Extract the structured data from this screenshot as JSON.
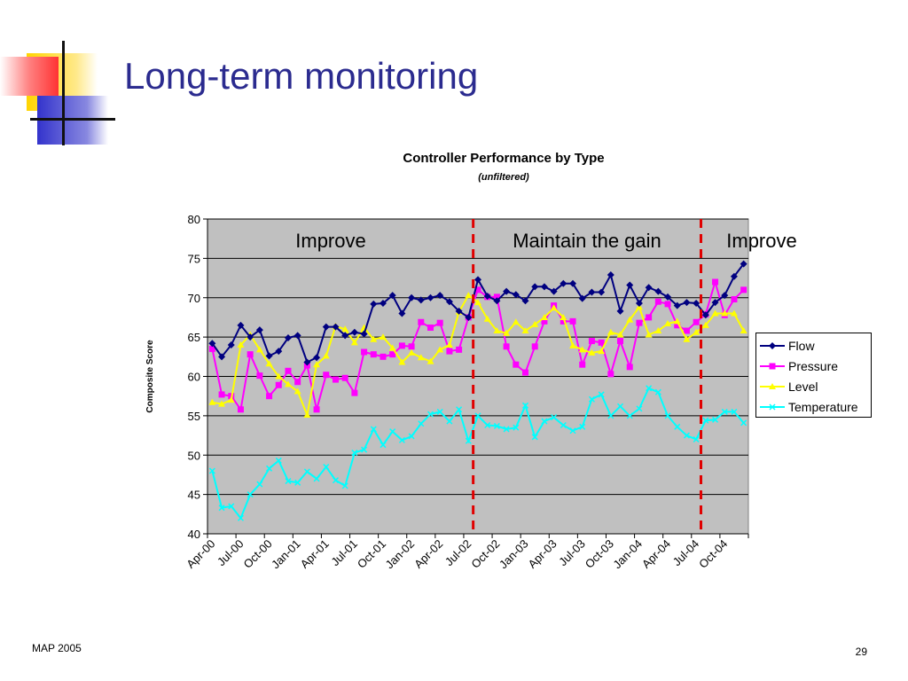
{
  "slide": {
    "title": "Long-term monitoring",
    "footer_left": "MAP 2005",
    "page_number": "29"
  },
  "colors": {
    "title": "#2B2B8F",
    "plot_background": "#C0C0C0",
    "divider": "#E00000",
    "decor_red": "#FF3333",
    "decor_yellow": "#FFD400",
    "decor_blue": "#3333CC"
  },
  "chart_data": {
    "type": "line",
    "title": "Controller Performance by Type",
    "subtitle": "(unfiltered)",
    "xlabel": "",
    "ylabel": "Composite Score",
    "ylim": [
      40,
      80
    ],
    "yticks": [
      40,
      45,
      50,
      55,
      60,
      65,
      70,
      75,
      80
    ],
    "grid": true,
    "legend_position": "right",
    "x": [
      "Apr-00",
      "May-00",
      "Jun-00",
      "Jul-00",
      "Aug-00",
      "Sep-00",
      "Oct-00",
      "Nov-00",
      "Dec-00",
      "Jan-01",
      "Feb-01",
      "Mar-01",
      "Apr-01",
      "May-01",
      "Jun-01",
      "Jul-01",
      "Aug-01",
      "Sep-01",
      "Oct-01",
      "Nov-01",
      "Dec-01",
      "Jan-02",
      "Feb-02",
      "Mar-02",
      "Apr-02",
      "May-02",
      "Jun-02",
      "Jul-02",
      "Aug-02",
      "Sep-02",
      "Oct-02",
      "Nov-02",
      "Dec-02",
      "Jan-03",
      "Feb-03",
      "Mar-03",
      "Apr-03",
      "May-03",
      "Jun-03",
      "Jul-03",
      "Aug-03",
      "Sep-03",
      "Oct-03",
      "Nov-03",
      "Dec-03",
      "Jan-04",
      "Feb-04",
      "Mar-04",
      "Apr-04",
      "May-04",
      "Jun-04",
      "Jul-04",
      "Aug-04",
      "Sep-04",
      "Oct-04",
      "Nov-04",
      "Dec-04"
    ],
    "xtick_labels": [
      "Apr-00",
      "Jul-00",
      "Oct-00",
      "Jan-01",
      "Apr-01",
      "Jul-01",
      "Oct-01",
      "Jan-02",
      "Apr-02",
      "Jul-02",
      "Oct-02",
      "Jan-03",
      "Apr-03",
      "Jul-03",
      "Oct-03",
      "Jan-04",
      "Apr-04",
      "Jul-04",
      "Oct-04"
    ],
    "series": [
      {
        "name": "Flow",
        "color": "#000080",
        "marker": "diamond",
        "values": [
          64.2,
          62.5,
          64.0,
          66.5,
          65.0,
          65.9,
          62.6,
          63.2,
          64.9,
          65.2,
          61.8,
          62.4,
          66.3,
          66.3,
          65.2,
          65.6,
          65.4,
          69.2,
          69.3,
          70.3,
          68.0,
          70.0,
          69.7,
          70.0,
          70.3,
          69.5,
          68.3,
          67.5,
          72.3,
          70.2,
          69.6,
          70.8,
          70.4,
          69.6,
          71.4,
          71.4,
          70.8,
          71.8,
          71.8,
          69.9,
          70.7,
          70.7,
          72.9,
          68.3,
          71.6,
          69.3,
          71.3,
          70.8,
          70.1,
          69.0,
          69.4,
          69.3,
          67.8,
          69.4,
          70.3,
          72.7,
          74.3
        ]
      },
      {
        "name": "Pressure",
        "color": "#FF00FF",
        "marker": "square",
        "values": [
          63.5,
          57.7,
          57.5,
          55.8,
          62.8,
          60.1,
          57.5,
          58.9,
          60.7,
          59.3,
          61.4,
          55.8,
          60.2,
          59.6,
          59.8,
          57.9,
          63.1,
          62.8,
          62.5,
          62.8,
          63.9,
          63.8,
          66.9,
          66.2,
          66.8,
          63.2,
          63.4,
          67.5,
          71.0,
          70.1,
          70.1,
          63.8,
          61.5,
          60.5,
          63.8,
          67.0,
          69.0,
          67.0,
          67.0,
          61.5,
          64.5,
          64.3,
          60.3,
          64.5,
          61.2,
          66.8,
          67.5,
          69.5,
          69.2,
          66.5,
          65.8,
          66.9,
          67.9,
          72.0,
          67.8,
          69.8,
          71.0
        ]
      },
      {
        "name": "Level",
        "color": "#FFFF00",
        "marker": "triangle",
        "values": [
          56.7,
          56.5,
          57.0,
          64.0,
          65.3,
          63.4,
          61.6,
          60.0,
          59.0,
          58.1,
          55.1,
          61.5,
          62.6,
          66.4,
          66.0,
          64.3,
          66.2,
          64.7,
          65.0,
          63.6,
          61.8,
          63.0,
          62.4,
          61.9,
          63.4,
          64.0,
          68.2,
          70.3,
          69.4,
          67.3,
          65.8,
          65.5,
          66.9,
          65.8,
          66.6,
          67.5,
          68.7,
          67.5,
          63.9,
          63.4,
          63.0,
          63.2,
          65.6,
          65.3,
          67.2,
          68.8,
          65.3,
          65.8,
          66.7,
          67.0,
          64.7,
          65.6,
          66.5,
          68.0,
          68.0,
          68.0,
          65.8
        ]
      },
      {
        "name": "Temperature",
        "color": "#00FFFF",
        "marker": "x",
        "values": [
          48.0,
          43.3,
          43.5,
          42.0,
          45.0,
          46.3,
          48.3,
          49.3,
          46.7,
          46.5,
          47.9,
          47.0,
          48.5,
          46.8,
          46.1,
          50.3,
          50.7,
          53.3,
          51.3,
          53.0,
          51.9,
          52.4,
          54.0,
          55.2,
          55.5,
          54.3,
          55.8,
          51.8,
          55.0,
          53.8,
          53.7,
          53.3,
          53.5,
          56.3,
          52.3,
          54.3,
          54.8,
          53.8,
          53.1,
          53.6,
          57.1,
          57.7,
          55.0,
          56.2,
          55.0,
          55.9,
          58.5,
          58.0,
          55.0,
          53.6,
          52.5,
          52.0,
          54.4,
          54.5,
          55.5,
          55.5,
          54.1
        ]
      }
    ],
    "dividers_after": [
      "Jul-02",
      "Jul-04"
    ],
    "annotations": [
      "Improve",
      "Maintain the gain",
      "Improve"
    ]
  }
}
